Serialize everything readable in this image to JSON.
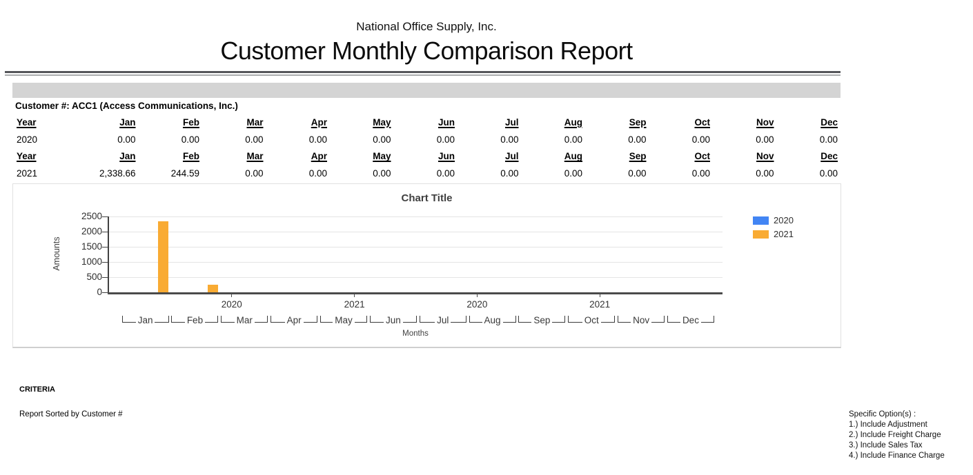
{
  "report": {
    "company": "National Office Supply, Inc.",
    "title": "Customer Monthly Comparison Report",
    "customer_line": "Customer #: ACC1 (Access Communications, Inc.)"
  },
  "table": {
    "col_year": "Year",
    "months": [
      "Jan",
      "Feb",
      "Mar",
      "Apr",
      "May",
      "Jun",
      "Jul",
      "Aug",
      "Sep",
      "Oct",
      "Nov",
      "Dec"
    ],
    "rows": [
      {
        "year": "2020",
        "values": [
          "0.00",
          "0.00",
          "0.00",
          "0.00",
          "0.00",
          "0.00",
          "0.00",
          "0.00",
          "0.00",
          "0.00",
          "0.00",
          "0.00"
        ]
      },
      {
        "year": "2021",
        "values": [
          "2,338.66",
          "244.59",
          "0.00",
          "0.00",
          "0.00",
          "0.00",
          "0.00",
          "0.00",
          "0.00",
          "0.00",
          "0.00",
          "0.00"
        ]
      }
    ]
  },
  "chart_data": {
    "type": "bar",
    "title": "Chart Title",
    "xlabel": "Months",
    "ylabel": "Amounts",
    "categories": [
      "Jan",
      "Feb",
      "Mar",
      "Apr",
      "May",
      "Jun",
      "Jul",
      "Aug",
      "Sep",
      "Oct",
      "Nov",
      "Dec"
    ],
    "series": [
      {
        "name": "2020",
        "color": "#4285F4",
        "values": [
          0,
          0,
          0,
          0,
          0,
          0,
          0,
          0,
          0,
          0,
          0,
          0
        ]
      },
      {
        "name": "2021",
        "color": "#F9AB33",
        "values": [
          2338.66,
          244.59,
          0,
          0,
          0,
          0,
          0,
          0,
          0,
          0,
          0,
          0
        ]
      }
    ],
    "ylim": [
      0,
      2500
    ],
    "yticks": [
      0,
      500,
      1000,
      1500,
      2000,
      2500
    ],
    "year_axis_labels": [
      "2020",
      "2021",
      "2020",
      "2021"
    ],
    "legend_position": "right",
    "grid": true
  },
  "footer": {
    "criteria_label": "CRITERIA",
    "sorted_by": "Report Sorted by Customer #",
    "options_title": "Specific Option(s) :",
    "options": [
      "1.) Include Adjustment",
      "2.) Include Freight Charge",
      "3.) Include Sales Tax",
      "4.) Include Finance Charge"
    ]
  },
  "colors": {
    "band_gray": "#d4d4d4",
    "series_2020": "#4285F4",
    "series_2021": "#F9AB33"
  }
}
